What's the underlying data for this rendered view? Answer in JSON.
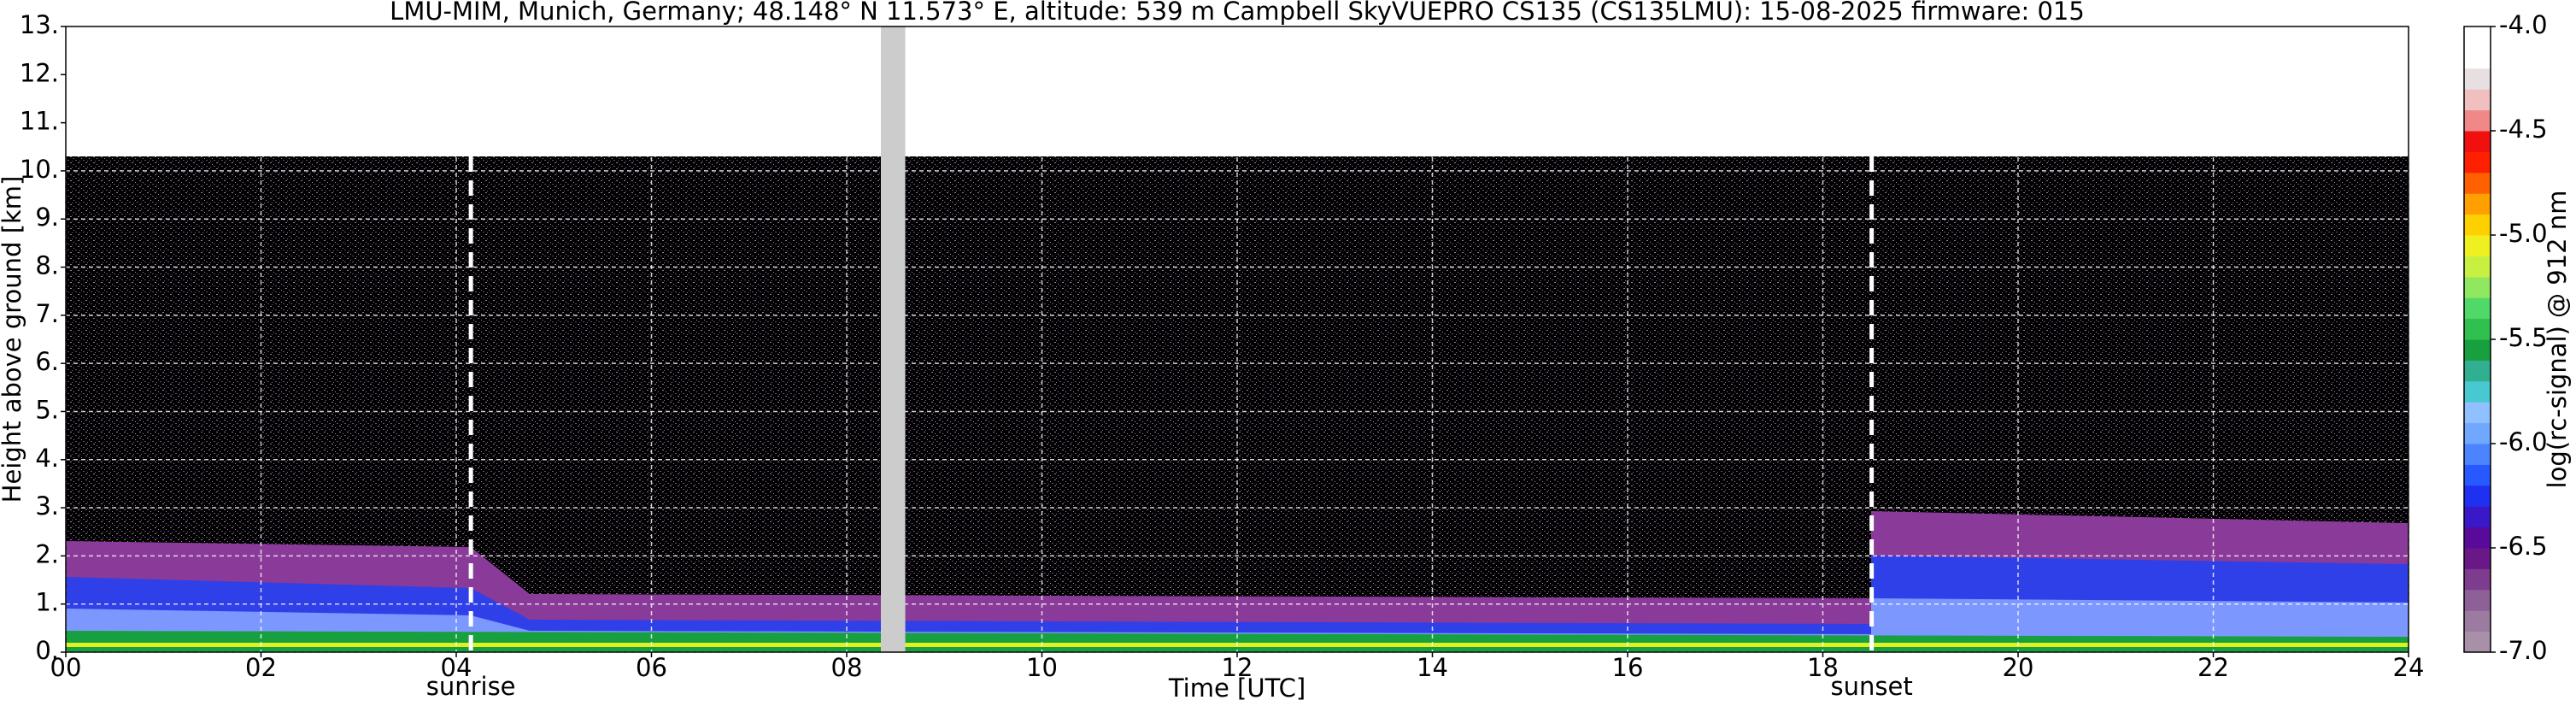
{
  "chart_data": {
    "type": "time-height",
    "title": "LMU-MIM, Munich, Germany; 48.148° N 11.573° E, altitude: 539 m    Campbell SkyVUEPRO CS135 (CS135LMU): 15-08-2025    firmware: 015",
    "xlabel": "Time [UTC]",
    "ylabel": "Height above ground [km]",
    "xlim": [
      0,
      24
    ],
    "xticks": [
      {
        "value": 0,
        "label": "00"
      },
      {
        "value": 2,
        "label": "02"
      },
      {
        "value": 4,
        "label": "04"
      },
      {
        "value": 6,
        "label": "06"
      },
      {
        "value": 8,
        "label": "08"
      },
      10,
      12,
      14,
      16,
      18,
      20,
      22,
      24
    ],
    "ylim": [
      0,
      13
    ],
    "yticks": [
      {
        "value": 0,
        "label": "0."
      },
      {
        "value": 1,
        "label": "1."
      },
      {
        "value": 2,
        "label": "2."
      },
      {
        "value": 3,
        "label": "3."
      },
      {
        "value": 4,
        "label": "4."
      },
      {
        "value": 5,
        "label": "5."
      },
      {
        "value": 6,
        "label": "6."
      },
      {
        "value": 7,
        "label": "7."
      },
      {
        "value": 8,
        "label": "8."
      },
      {
        "value": 9,
        "label": "9."
      },
      {
        "value": 10,
        "label": "10."
      },
      {
        "value": 11,
        "label": "11."
      },
      {
        "value": 12,
        "label": "12."
      },
      {
        "value": 13,
        "label": "13."
      }
    ],
    "grid": true,
    "grid_color": "#ffffff",
    "gap": [
      8.35,
      8.6
    ],
    "gap_color": "#cccccc",
    "annotations": [
      {
        "label": "sunrise",
        "x": 4.15
      },
      {
        "label": "sunset",
        "x": 18.5
      }
    ],
    "colorbar": {
      "label": "log(rc-signal) @ 912 nm",
      "lim": [
        -7.0,
        -4.0
      ],
      "ticks": [
        {
          "value": -7.0,
          "label": "-7.0"
        },
        {
          "value": -6.5,
          "label": "-6.5"
        },
        {
          "value": -6.0,
          "label": "-6.0"
        },
        {
          "value": -5.5,
          "label": "-5.5"
        },
        {
          "value": -5.0,
          "label": "-5.0"
        },
        {
          "value": -4.5,
          "label": "-4.5"
        },
        {
          "value": -4.0,
          "label": "-4.0"
        }
      ],
      "colors": [
        "#a890a8",
        "#9b7ba0",
        "#8e6098",
        "#7e3c8e",
        "#6a1888",
        "#5a0a9a",
        "#3a18c8",
        "#2030f0",
        "#2858ff",
        "#4c84ff",
        "#70a8ff",
        "#90c0ff",
        "#48c8d0",
        "#30b090",
        "#18a040",
        "#30c050",
        "#50d868",
        "#90e860",
        "#c8f040",
        "#f0f020",
        "#ffd000",
        "#ffa000",
        "#ff6000",
        "#ff2000",
        "#f01010",
        "#f08888",
        "#f0c0c0",
        "#e8e0e0",
        "#ffffff",
        "#ffffff"
      ]
    }
  }
}
